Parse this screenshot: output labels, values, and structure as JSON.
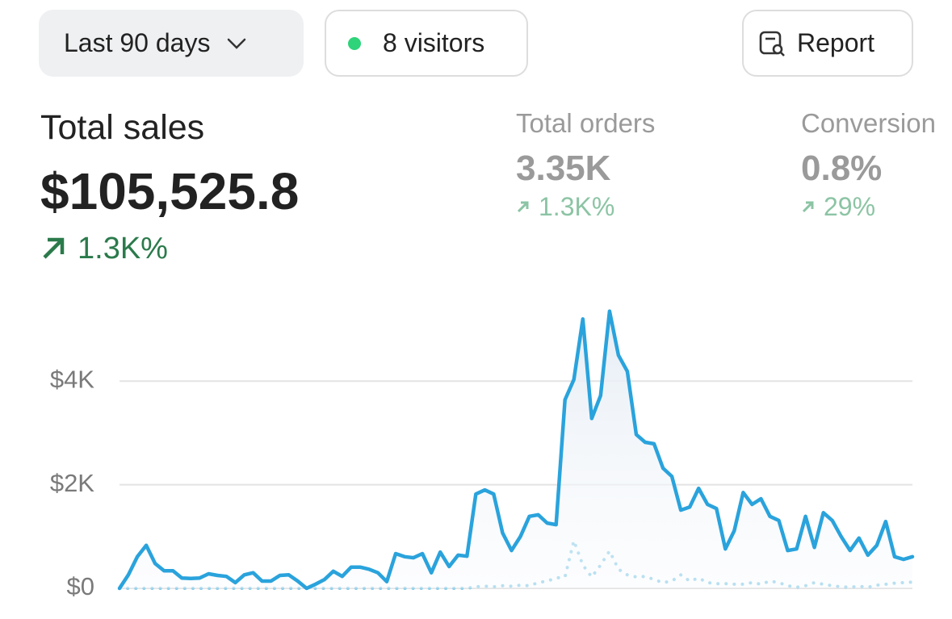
{
  "filters": {
    "date_range": "Last 90 days",
    "visitors": "8 visitors",
    "report": "Report"
  },
  "metrics": [
    {
      "label": "Total sales",
      "value": "$105,525.8",
      "change": "1.3K%"
    },
    {
      "label": "Total orders",
      "value": "3.35K",
      "change": "1.3K%"
    },
    {
      "label": "Conversion",
      "value": "0.8%",
      "change": "29%"
    }
  ],
  "chart_data": {
    "type": "line",
    "categories": [
      null,
      null,
      null,
      null,
      null,
      null,
      null,
      null,
      null,
      null,
      null,
      null,
      null,
      null,
      null,
      null,
      null,
      null,
      null,
      null,
      null,
      null,
      null,
      null,
      null,
      null,
      null,
      null,
      null,
      null,
      null,
      null,
      null,
      null,
      null,
      null,
      null,
      null,
      null,
      null,
      null,
      null,
      null,
      null,
      null,
      null,
      null,
      null,
      null,
      null,
      null,
      null,
      null,
      null,
      null,
      null,
      null,
      null,
      null,
      null,
      null,
      null,
      null,
      null,
      null,
      null,
      null,
      null,
      null,
      null,
      null,
      null,
      null,
      null,
      null,
      null,
      null,
      null,
      null,
      null,
      null,
      null,
      null,
      null,
      null,
      null,
      null,
      null,
      null,
      null
    ],
    "series": [
      {
        "color": "#2aa3dc",
        "area": true,
        "style": "solid",
        "values": [
          0,
          260,
          610,
          830,
          480,
          340,
          340,
          200,
          190,
          200,
          280,
          250,
          230,
          110,
          260,
          300,
          140,
          140,
          250,
          260,
          140,
          0,
          80,
          170,
          330,
          230,
          410,
          410,
          370,
          300,
          130,
          670,
          610,
          590,
          670,
          300,
          700,
          420,
          640,
          620,
          1820,
          1900,
          1820,
          1070,
          730,
          1000,
          1390,
          1420,
          1260,
          1230,
          3640,
          4030,
          5200,
          3280,
          3720,
          5350,
          4500,
          4190,
          2970,
          2820,
          2790,
          2320,
          2160,
          1510,
          1570,
          1930,
          1620,
          1540,
          760,
          1110,
          1850,
          1620,
          1730,
          1390,
          1310,
          730,
          760,
          1390,
          790,
          1460,
          1310,
          1000,
          730,
          970,
          640,
          830,
          1290,
          610,
          560,
          610
        ]
      },
      {
        "color": "#8ccde9",
        "area": false,
        "style": "dotted",
        "values": [
          0,
          0,
          0,
          0,
          0,
          0,
          0,
          0,
          0,
          0,
          0,
          0,
          0,
          0,
          0,
          0,
          0,
          0,
          0,
          0,
          0,
          0,
          0,
          0,
          0,
          0,
          0,
          0,
          0,
          0,
          0,
          0,
          0,
          0,
          0,
          0,
          0,
          0,
          0,
          0,
          30,
          40,
          30,
          50,
          40,
          60,
          50,
          110,
          140,
          200,
          220,
          920,
          450,
          220,
          450,
          720,
          370,
          260,
          220,
          230,
          170,
          110,
          140,
          260,
          140,
          200,
          110,
          90,
          90,
          80,
          80,
          110,
          80,
          140,
          110,
          50,
          20,
          50,
          110,
          80,
          50,
          30,
          20,
          40,
          20,
          60,
          80,
          100,
          110,
          120
        ]
      }
    ],
    "ylim": [
      0,
      5500
    ],
    "yticks": [
      {
        "value": 0,
        "label": "$0"
      },
      {
        "value": 2000,
        "label": "$2K"
      },
      {
        "value": 4000,
        "label": "$4K"
      }
    ],
    "grid": true
  }
}
